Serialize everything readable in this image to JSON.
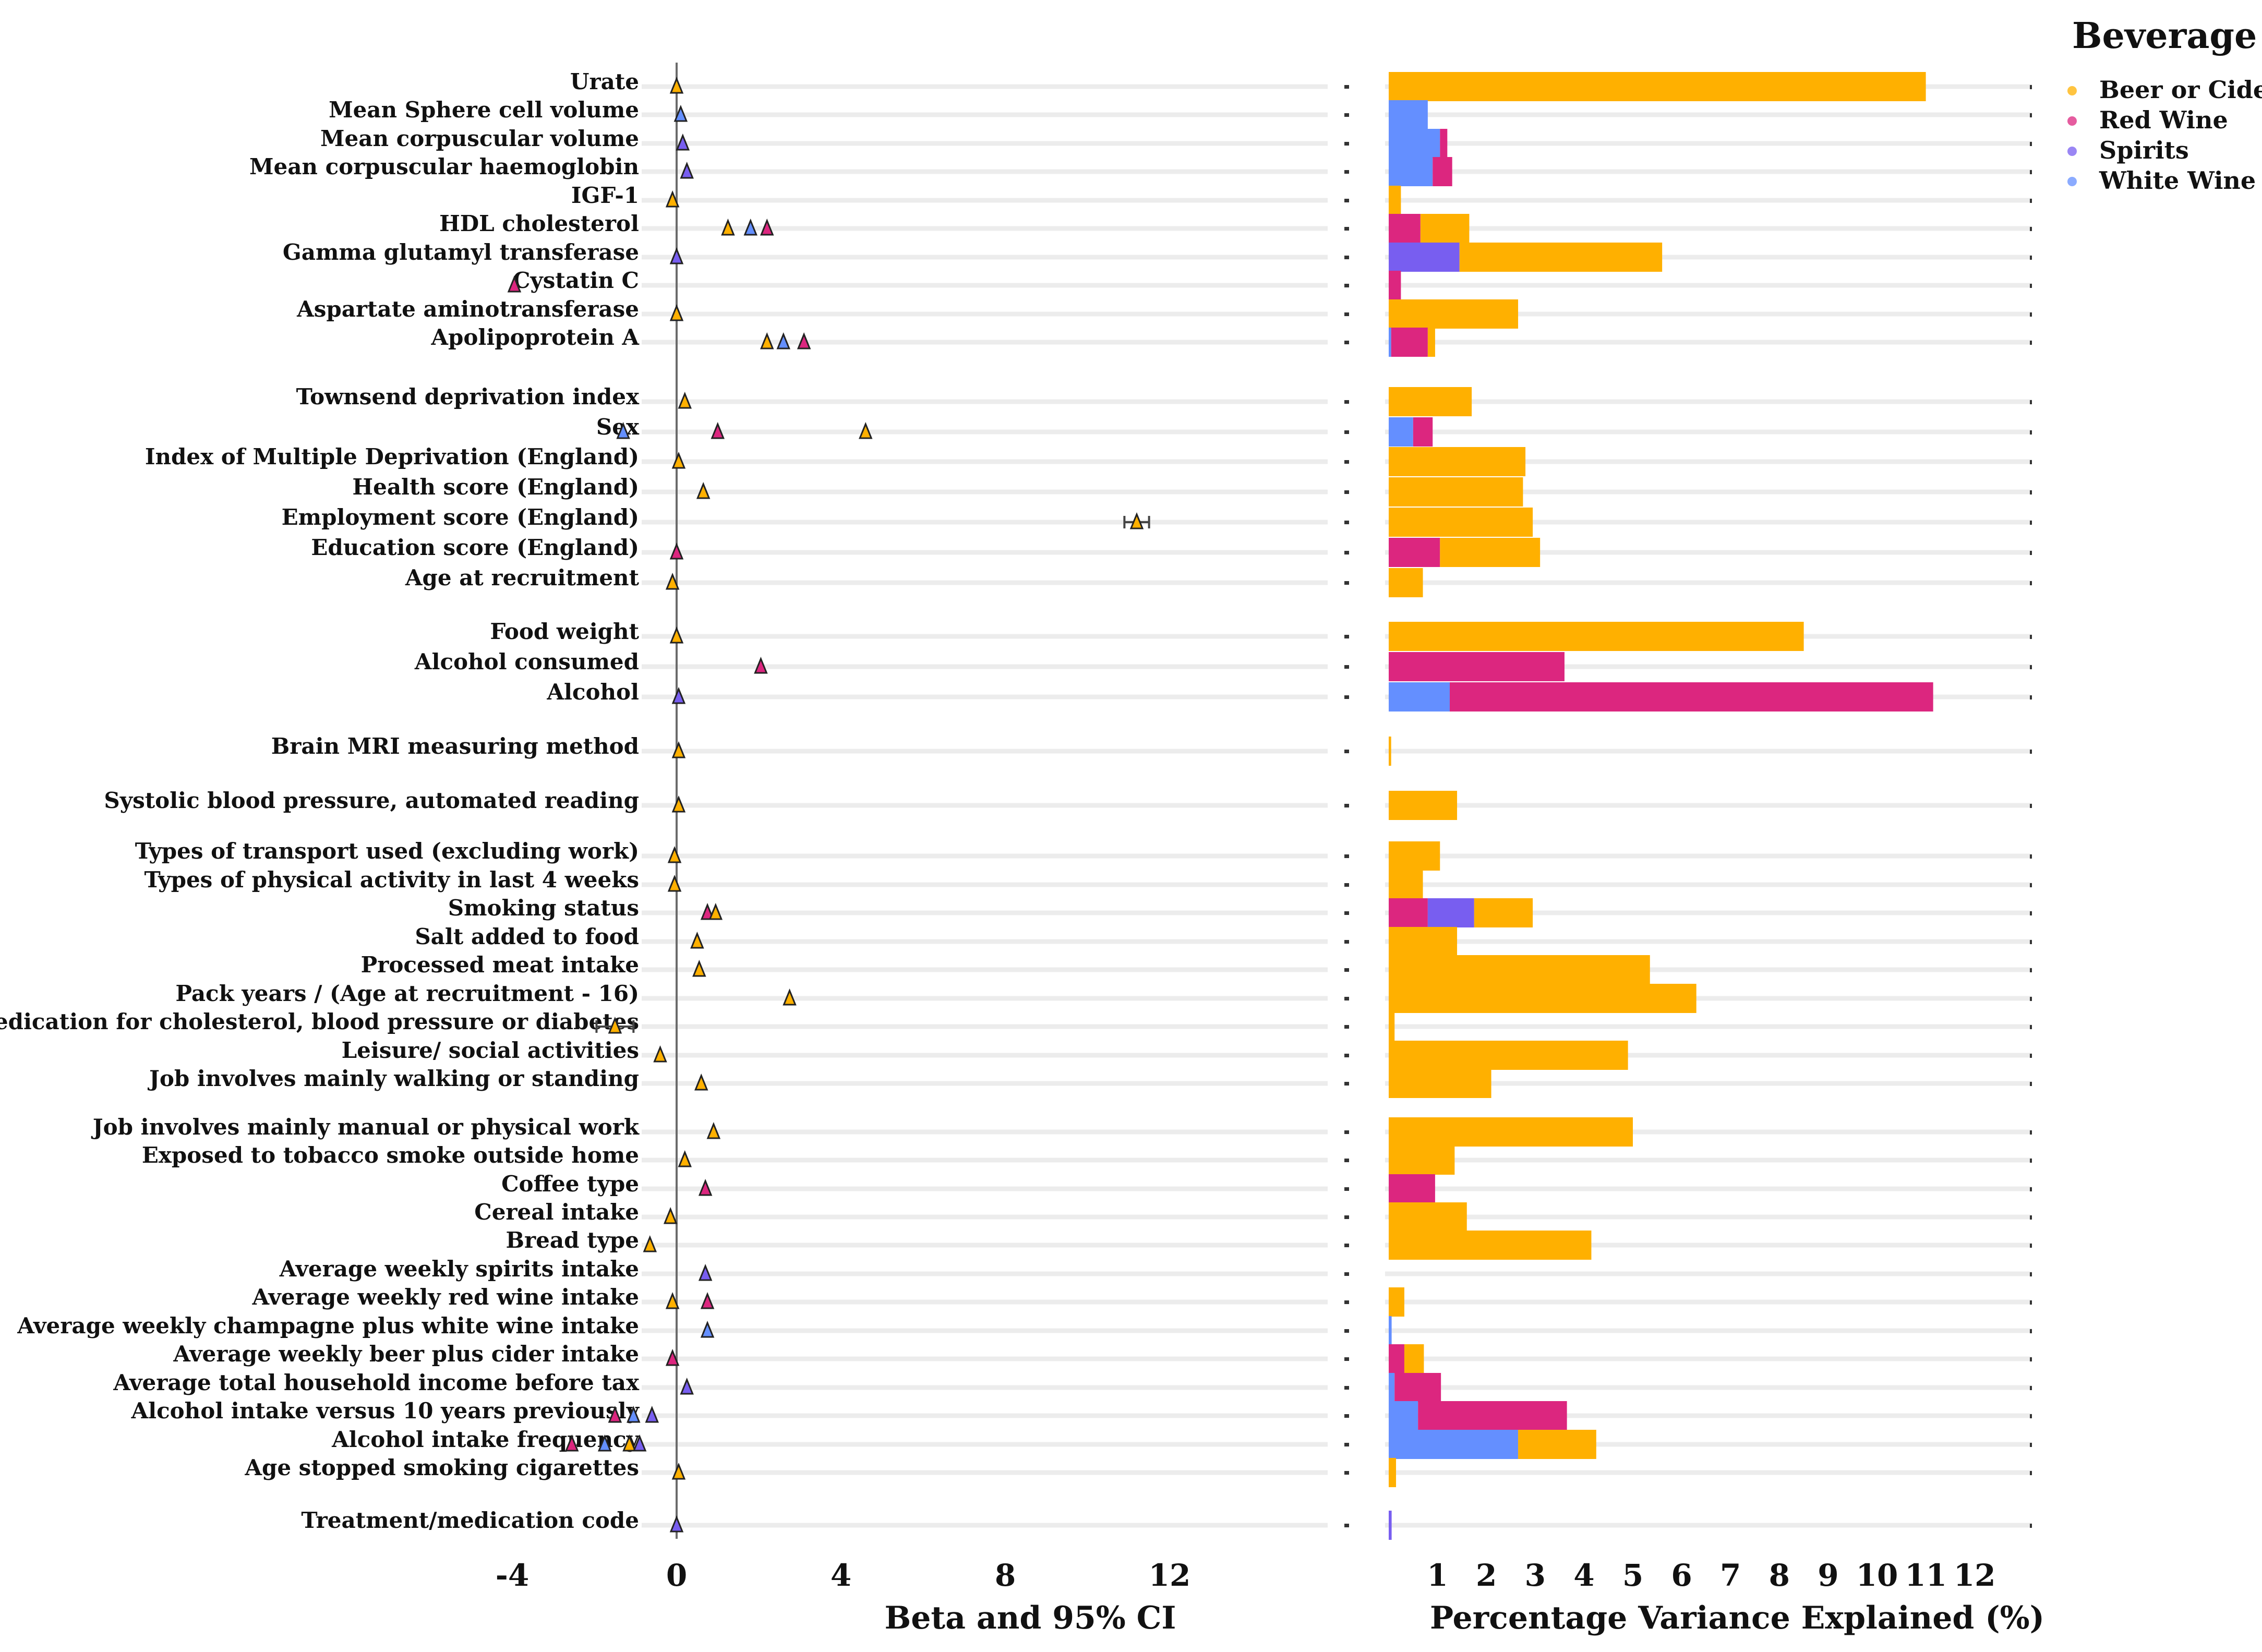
{
  "chart_data": {
    "type": "bar",
    "legend": {
      "title": "Beverage",
      "placement": "top-right",
      "items": [
        {
          "name": "Beer or Cider",
          "color": "#FFB000"
        },
        {
          "name": "Red Wine",
          "color": "#DC267F"
        },
        {
          "name": "Spirits",
          "color": "#785EF0"
        },
        {
          "name": "White Wine",
          "color": "#648FFF"
        }
      ]
    },
    "forest_panel": {
      "xlabel": "Beta and 95% CI",
      "xlim": [
        -4.5,
        12.5
      ],
      "xticks": [
        "-4",
        "0",
        "4",
        "8",
        "12"
      ],
      "reference_line": 0
    },
    "variance_panel": {
      "xlabel": "Percentage Variance Explained (%)",
      "xlim": [
        0,
        12.3
      ],
      "xticks": [
        "1",
        "2",
        "3",
        "4",
        "5",
        "6",
        "7",
        "8",
        "9",
        "10",
        "11",
        "12"
      ]
    },
    "categories": [
      "Urate",
      "Mean Sphere cell volume",
      "Mean corpuscular volume",
      "Mean corpuscular haemoglobin",
      "IGF-1",
      "HDL cholesterol",
      "Gamma glutamyl transferase",
      "Cystatin C",
      "Aspartate aminotransferase",
      "Apolipoprotein A",
      "Townsend deprivation index",
      "Sex",
      "Index of Multiple Deprivation (England)",
      "Health score (England)",
      "Employment score (England)",
      "Education score (England)",
      "Age at recruitment",
      "Food weight",
      "Alcohol consumed",
      "Alcohol",
      "Brain MRI measuring method",
      "Systolic blood pressure, automated reading",
      "Types of transport used (excluding work)",
      "Types of physical activity in last 4 weeks",
      "Smoking status",
      "Salt added to food",
      "Processed meat intake",
      "Pack years / (Age at recruitment - 16)",
      "Medication for cholesterol, blood pressure or diabetes",
      "Leisure/ social activities",
      "Job involves mainly walking or standing",
      "Job involves mainly manual or physical work",
      "Exposed to tobacco smoke outside home",
      "Coffee type",
      "Cereal intake",
      "Bread type",
      "Average weekly spirits intake",
      "Average weekly red wine intake",
      "Average weekly champagne plus white wine intake",
      "Average weekly beer plus cider intake",
      "Average total household income before tax",
      "Alcohol intake versus 10 years previously",
      "Alcohol intake frequency",
      "Age stopped smoking cigarettes",
      "Treatment/medication code"
    ],
    "points": [
      {
        "row": 0,
        "beta": 0.0,
        "series": "Beer or Cider"
      },
      {
        "row": 1,
        "beta": 0.1,
        "series": "White Wine"
      },
      {
        "row": 2,
        "beta": 0.15,
        "series": "Spirits"
      },
      {
        "row": 3,
        "beta": 0.25,
        "series": "Spirits"
      },
      {
        "row": 4,
        "beta": -0.1,
        "series": "Beer or Cider"
      },
      {
        "row": 5,
        "beta": 1.25,
        "series": "Beer or Cider"
      },
      {
        "row": 5,
        "beta": 1.8,
        "series": "White Wine"
      },
      {
        "row": 5,
        "beta": 2.2,
        "series": "Red Wine"
      },
      {
        "row": 6,
        "beta": 0.0,
        "series": "Spirits"
      },
      {
        "row": 7,
        "beta": -3.95,
        "series": "Red Wine"
      },
      {
        "row": 8,
        "beta": 0.0,
        "series": "Beer or Cider"
      },
      {
        "row": 9,
        "beta": 2.2,
        "series": "Beer or Cider"
      },
      {
        "row": 9,
        "beta": 2.6,
        "series": "White Wine"
      },
      {
        "row": 9,
        "beta": 3.1,
        "series": "Red Wine"
      },
      {
        "row": 10,
        "beta": 0.2,
        "series": "Beer or Cider"
      },
      {
        "row": 11,
        "beta": -1.3,
        "series": "White Wine"
      },
      {
        "row": 11,
        "beta": 1.0,
        "series": "Red Wine"
      },
      {
        "row": 11,
        "beta": 4.6,
        "series": "Beer or Cider"
      },
      {
        "row": 12,
        "beta": 0.05,
        "series": "Beer or Cider"
      },
      {
        "row": 13,
        "beta": 0.65,
        "series": "Beer or Cider"
      },
      {
        "row": 14,
        "beta": 11.2,
        "series": "Beer or Cider",
        "ci": [
          10.9,
          11.5
        ]
      },
      {
        "row": 15,
        "beta": 0.0,
        "series": "Red Wine"
      },
      {
        "row": 16,
        "beta": -0.1,
        "series": "Beer or Cider"
      },
      {
        "row": 17,
        "beta": 0.0,
        "series": "Beer or Cider"
      },
      {
        "row": 18,
        "beta": 2.05,
        "series": "Red Wine"
      },
      {
        "row": 19,
        "beta": 0.05,
        "series": "Spirits"
      },
      {
        "row": 20,
        "beta": 0.05,
        "series": "Beer or Cider"
      },
      {
        "row": 21,
        "beta": 0.05,
        "series": "Beer or Cider"
      },
      {
        "row": 22,
        "beta": -0.05,
        "series": "Beer or Cider"
      },
      {
        "row": 23,
        "beta": -0.05,
        "series": "Beer or Cider"
      },
      {
        "row": 24,
        "beta": 0.75,
        "series": "Red Wine"
      },
      {
        "row": 24,
        "beta": 0.95,
        "series": "Beer or Cider"
      },
      {
        "row": 25,
        "beta": 0.5,
        "series": "Beer or Cider"
      },
      {
        "row": 26,
        "beta": 0.55,
        "series": "Beer or Cider"
      },
      {
        "row": 27,
        "beta": 2.75,
        "series": "Beer or Cider"
      },
      {
        "row": 28,
        "beta": -1.5,
        "series": "Beer or Cider",
        "ci": [
          -1.95,
          -1.05
        ]
      },
      {
        "row": 29,
        "beta": -0.4,
        "series": "Beer or Cider"
      },
      {
        "row": 30,
        "beta": 0.6,
        "series": "Beer or Cider"
      },
      {
        "row": 31,
        "beta": 0.9,
        "series": "Beer or Cider"
      },
      {
        "row": 32,
        "beta": 0.2,
        "series": "Beer or Cider"
      },
      {
        "row": 33,
        "beta": 0.7,
        "series": "Red Wine"
      },
      {
        "row": 34,
        "beta": -0.15,
        "series": "Beer or Cider"
      },
      {
        "row": 35,
        "beta": -0.65,
        "series": "Beer or Cider"
      },
      {
        "row": 36,
        "beta": 0.7,
        "series": "Spirits"
      },
      {
        "row": 37,
        "beta": -0.1,
        "series": "Beer or Cider"
      },
      {
        "row": 37,
        "beta": 0.75,
        "series": "Red Wine"
      },
      {
        "row": 38,
        "beta": 0.75,
        "series": "White Wine"
      },
      {
        "row": 39,
        "beta": -0.1,
        "series": "Red Wine"
      },
      {
        "row": 40,
        "beta": 0.25,
        "series": "Spirits"
      },
      {
        "row": 41,
        "beta": -1.5,
        "series": "Red Wine"
      },
      {
        "row": 41,
        "beta": -1.05,
        "series": "White Wine"
      },
      {
        "row": 41,
        "beta": -0.6,
        "series": "Spirits"
      },
      {
        "row": 42,
        "beta": -2.55,
        "series": "Red Wine"
      },
      {
        "row": 42,
        "beta": -1.75,
        "series": "White Wine"
      },
      {
        "row": 42,
        "beta": -1.15,
        "series": "Beer or Cider"
      },
      {
        "row": 42,
        "beta": -0.9,
        "series": "Spirits"
      },
      {
        "row": 43,
        "beta": 0.05,
        "series": "Beer or Cider"
      },
      {
        "row": 44,
        "beta": 0.0,
        "series": "Spirits"
      }
    ],
    "variance_bars": [
      {
        "row": 0,
        "segments": [
          {
            "series": "Beer or Cider",
            "value": 11.0
          }
        ]
      },
      {
        "row": 1,
        "segments": [
          {
            "series": "White Wine",
            "value": 0.8
          }
        ]
      },
      {
        "row": 2,
        "segments": [
          {
            "series": "White Wine",
            "value": 1.05
          },
          {
            "series": "Red Wine",
            "value": 0.15
          }
        ]
      },
      {
        "row": 3,
        "segments": [
          {
            "series": "White Wine",
            "value": 0.9
          },
          {
            "series": "Red Wine",
            "value": 0.4
          }
        ]
      },
      {
        "row": 4,
        "segments": [
          {
            "series": "Beer or Cider",
            "value": 0.25
          }
        ]
      },
      {
        "row": 5,
        "segments": [
          {
            "series": "Red Wine",
            "value": 0.65
          },
          {
            "series": "Beer or Cider",
            "value": 1.0
          }
        ]
      },
      {
        "row": 6,
        "segments": [
          {
            "series": "Spirits",
            "value": 1.45
          },
          {
            "series": "Beer or Cider",
            "value": 4.15
          }
        ]
      },
      {
        "row": 7,
        "segments": [
          {
            "series": "Red Wine",
            "value": 0.25
          }
        ]
      },
      {
        "row": 8,
        "segments": [
          {
            "series": "Beer or Cider",
            "value": 2.65
          }
        ]
      },
      {
        "row": 9,
        "segments": [
          {
            "series": "White Wine",
            "value": 0.05
          },
          {
            "series": "Red Wine",
            "value": 0.75
          },
          {
            "series": "Beer or Cider",
            "value": 0.15
          }
        ]
      },
      {
        "row": 10,
        "segments": [
          {
            "series": "Beer or Cider",
            "value": 1.7
          }
        ]
      },
      {
        "row": 11,
        "segments": [
          {
            "series": "White Wine",
            "value": 0.5
          },
          {
            "series": "Red Wine",
            "value": 0.4
          }
        ]
      },
      {
        "row": 12,
        "segments": [
          {
            "series": "Beer or Cider",
            "value": 2.8
          }
        ]
      },
      {
        "row": 13,
        "segments": [
          {
            "series": "Beer or Cider",
            "value": 2.75
          }
        ]
      },
      {
        "row": 14,
        "segments": [
          {
            "series": "Beer or Cider",
            "value": 2.95
          }
        ]
      },
      {
        "row": 15,
        "segments": [
          {
            "series": "Red Wine",
            "value": 1.05
          },
          {
            "series": "Beer or Cider",
            "value": 2.05
          }
        ]
      },
      {
        "row": 16,
        "segments": [
          {
            "series": "Beer or Cider",
            "value": 0.7
          }
        ]
      },
      {
        "row": 17,
        "segments": [
          {
            "series": "Beer or Cider",
            "value": 8.5
          }
        ]
      },
      {
        "row": 18,
        "segments": [
          {
            "series": "Red Wine",
            "value": 3.6
          }
        ]
      },
      {
        "row": 19,
        "segments": [
          {
            "series": "White Wine",
            "value": 1.25
          },
          {
            "series": "Red Wine",
            "value": 9.9
          }
        ]
      },
      {
        "row": 20,
        "segments": [
          {
            "series": "Beer or Cider",
            "value": 0.05
          }
        ]
      },
      {
        "row": 21,
        "segments": [
          {
            "series": "Beer or Cider",
            "value": 1.4
          }
        ]
      },
      {
        "row": 22,
        "segments": [
          {
            "series": "Beer or Cider",
            "value": 1.05
          }
        ]
      },
      {
        "row": 23,
        "segments": [
          {
            "series": "Beer or Cider",
            "value": 0.7
          }
        ]
      },
      {
        "row": 24,
        "segments": [
          {
            "series": "Red Wine",
            "value": 0.8
          },
          {
            "series": "Spirits",
            "value": 0.95
          },
          {
            "series": "Beer or Cider",
            "value": 1.2
          }
        ]
      },
      {
        "row": 25,
        "segments": [
          {
            "series": "Beer or Cider",
            "value": 1.4
          }
        ]
      },
      {
        "row": 26,
        "segments": [
          {
            "series": "Beer or Cider",
            "value": 5.35
          }
        ]
      },
      {
        "row": 27,
        "segments": [
          {
            "series": "Beer or Cider",
            "value": 6.3
          }
        ]
      },
      {
        "row": 28,
        "segments": [
          {
            "series": "Beer or Cider",
            "value": 0.12
          }
        ]
      },
      {
        "row": 29,
        "segments": [
          {
            "series": "Beer or Cider",
            "value": 4.9
          }
        ]
      },
      {
        "row": 30,
        "segments": [
          {
            "series": "Beer or Cider",
            "value": 2.1
          }
        ]
      },
      {
        "row": 31,
        "segments": [
          {
            "series": "Beer or Cider",
            "value": 5.0
          }
        ]
      },
      {
        "row": 32,
        "segments": [
          {
            "series": "Beer or Cider",
            "value": 1.35
          }
        ]
      },
      {
        "row": 33,
        "segments": [
          {
            "series": "Red Wine",
            "value": 0.95
          }
        ]
      },
      {
        "row": 34,
        "segments": [
          {
            "series": "Beer or Cider",
            "value": 1.6
          }
        ]
      },
      {
        "row": 35,
        "segments": [
          {
            "series": "Beer or Cider",
            "value": 4.15
          }
        ]
      },
      {
        "row": 36,
        "segments": []
      },
      {
        "row": 37,
        "segments": [
          {
            "series": "Beer or Cider",
            "value": 0.32
          }
        ]
      },
      {
        "row": 38,
        "segments": [
          {
            "series": "White Wine",
            "value": 0.06
          }
        ]
      },
      {
        "row": 39,
        "segments": [
          {
            "series": "Red Wine",
            "value": 0.32
          },
          {
            "series": "Beer or Cider",
            "value": 0.4
          }
        ]
      },
      {
        "row": 40,
        "segments": [
          {
            "series": "White Wine",
            "value": 0.12
          },
          {
            "series": "Red Wine",
            "value": 0.95
          }
        ]
      },
      {
        "row": 41,
        "segments": [
          {
            "series": "White Wine",
            "value": 0.6
          },
          {
            "series": "Red Wine",
            "value": 3.05
          }
        ]
      },
      {
        "row": 42,
        "segments": [
          {
            "series": "White Wine",
            "value": 2.65
          },
          {
            "series": "Beer or Cider",
            "value": 1.6
          }
        ]
      },
      {
        "row": 43,
        "segments": [
          {
            "series": "Beer or Cider",
            "value": 0.15
          }
        ]
      },
      {
        "row": 44,
        "segments": [
          {
            "series": "Spirits",
            "value": 0.06
          }
        ]
      }
    ]
  }
}
